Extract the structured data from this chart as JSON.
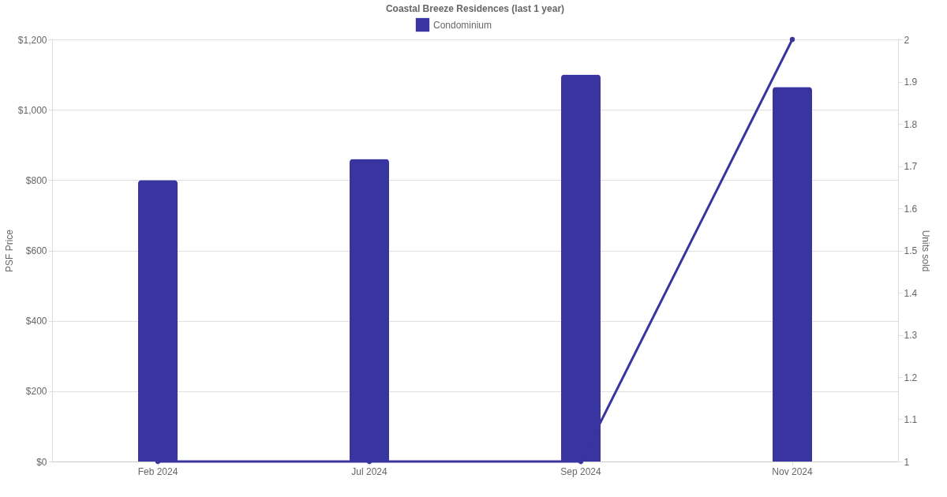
{
  "chart_data": {
    "type": "bar",
    "title": "Coastal Breeze Residences (last 1 year)",
    "categories": [
      "Feb 2024",
      "Jul 2024",
      "Sep 2024",
      "Nov 2024"
    ],
    "ylabel": "PSF Price",
    "y2label": "Units sold",
    "series": [
      {
        "name": "Condominium",
        "color": "#3834a0",
        "values": [
          800,
          860,
          1100,
          1065
        ]
      },
      {
        "type": "line",
        "axis": "y2",
        "color": "#3834a0",
        "values": [
          1,
          1,
          1,
          2
        ]
      }
    ],
    "ylim": [
      0,
      1200
    ],
    "yticks": [
      {
        "value": 0,
        "label": "$0"
      },
      {
        "value": 200,
        "label": "$200"
      },
      {
        "value": 400,
        "label": "$400"
      },
      {
        "value": 600,
        "label": "$600"
      },
      {
        "value": 800,
        "label": "$800"
      },
      {
        "value": 1000,
        "label": "$1,000"
      },
      {
        "value": 1200,
        "label": "$1,200"
      }
    ],
    "y2lim": [
      1,
      2
    ],
    "y2ticks": [
      1,
      1.1,
      1.2,
      1.3,
      1.4,
      1.5,
      1.6,
      1.7,
      1.8,
      1.9,
      2
    ],
    "grid": "y",
    "legend": "top",
    "marker": "circle"
  }
}
